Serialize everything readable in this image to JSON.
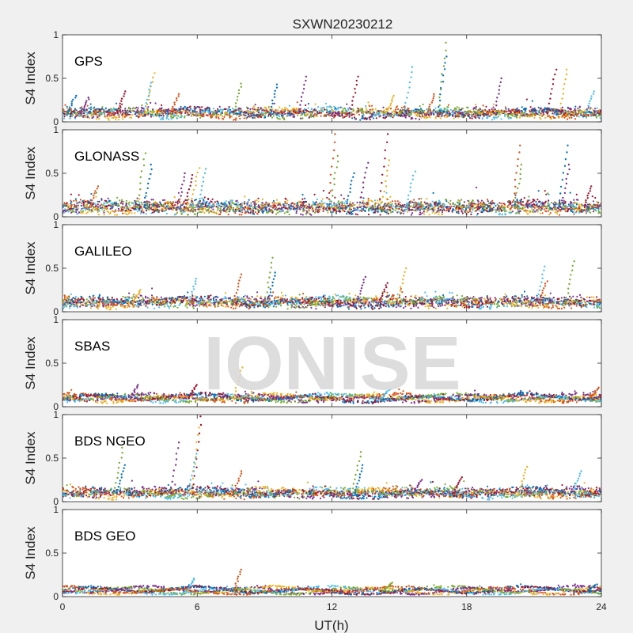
{
  "figure": {
    "title": "SXWN20230212",
    "xlabel": "UT(h)",
    "watermark": "IONISE",
    "background": "#f0f0f0",
    "axes_background": "#ffffff"
  },
  "chart_data": {
    "type": "scatter",
    "title": "SXWN20230212",
    "xlabel": "UT(h)",
    "xlim": [
      0,
      24
    ],
    "xticks": [
      0,
      6,
      12,
      18,
      24
    ],
    "grid": false,
    "series_colors": [
      "#0072BD",
      "#D95319",
      "#EDB120",
      "#7E2F8E",
      "#77AC30",
      "#4DBEEE",
      "#A2142F"
    ],
    "panels": [
      {
        "label": "GPS",
        "ylabel": "S4 Index",
        "ylim": [
          0,
          1
        ],
        "yticks": [
          0,
          0.5,
          1
        ],
        "baseline": 0.1,
        "noise": 0.03,
        "spikes": [
          {
            "x": 0.4,
            "y": 0.3
          },
          {
            "x": 1.0,
            "y": 0.28
          },
          {
            "x": 2.6,
            "y": 0.35
          },
          {
            "x": 3.9,
            "y": 0.56
          },
          {
            "x": 3.8,
            "y": 0.45
          },
          {
            "x": 5.0,
            "y": 0.32
          },
          {
            "x": 7.8,
            "y": 0.44
          },
          {
            "x": 9.4,
            "y": 0.43
          },
          {
            "x": 10.7,
            "y": 0.52
          },
          {
            "x": 13.0,
            "y": 0.52
          },
          {
            "x": 14.6,
            "y": 0.3
          },
          {
            "x": 15.4,
            "y": 0.63
          },
          {
            "x": 16.4,
            "y": 0.32
          },
          {
            "x": 16.9,
            "y": 0.91
          },
          {
            "x": 16.9,
            "y": 0.75
          },
          {
            "x": 19.4,
            "y": 0.5
          },
          {
            "x": 21.8,
            "y": 0.6
          },
          {
            "x": 22.3,
            "y": 0.6
          },
          {
            "x": 23.5,
            "y": 0.35
          }
        ]
      },
      {
        "label": "GLONASS",
        "ylabel": "S4 Index",
        "ylim": [
          0,
          1
        ],
        "yticks": [
          0,
          0.5,
          1
        ],
        "baseline": 0.11,
        "noise": 0.05,
        "spikes": [
          {
            "x": 1.4,
            "y": 0.35
          },
          {
            "x": 3.5,
            "y": 0.73
          },
          {
            "x": 3.8,
            "y": 0.6
          },
          {
            "x": 5.3,
            "y": 0.5
          },
          {
            "x": 5.6,
            "y": 0.48
          },
          {
            "x": 5.9,
            "y": 0.56
          },
          {
            "x": 6.2,
            "y": 0.55
          },
          {
            "x": 12.0,
            "y": 0.95
          },
          {
            "x": 12.1,
            "y": 0.7
          },
          {
            "x": 12.8,
            "y": 0.5
          },
          {
            "x": 13.4,
            "y": 0.62
          },
          {
            "x": 14.3,
            "y": 0.95
          },
          {
            "x": 14.4,
            "y": 0.65
          },
          {
            "x": 15.5,
            "y": 0.52
          },
          {
            "x": 20.2,
            "y": 0.82
          },
          {
            "x": 20.3,
            "y": 0.6
          },
          {
            "x": 22.3,
            "y": 0.82
          },
          {
            "x": 22.4,
            "y": 0.6
          },
          {
            "x": 23.4,
            "y": 0.35
          }
        ]
      },
      {
        "label": "GALILEO",
        "ylabel": "S4 Index",
        "ylim": [
          0,
          1
        ],
        "yticks": [
          0,
          0.5,
          1
        ],
        "baseline": 0.11,
        "noise": 0.035,
        "spikes": [
          {
            "x": 3.3,
            "y": 0.25
          },
          {
            "x": 5.8,
            "y": 0.38
          },
          {
            "x": 7.8,
            "y": 0.43
          },
          {
            "x": 9.2,
            "y": 0.62
          },
          {
            "x": 9.3,
            "y": 0.45
          },
          {
            "x": 13.3,
            "y": 0.4
          },
          {
            "x": 14.3,
            "y": 0.33
          },
          {
            "x": 15.1,
            "y": 0.5
          },
          {
            "x": 21.3,
            "y": 0.52
          },
          {
            "x": 21.4,
            "y": 0.35
          },
          {
            "x": 22.6,
            "y": 0.58
          }
        ]
      },
      {
        "label": "SBAS",
        "ylabel": "S4 Index",
        "ylim": [
          0,
          1
        ],
        "yticks": [
          0,
          0.5,
          1
        ],
        "baseline": 0.1,
        "noise": 0.015,
        "spikes": [
          {
            "x": 3.2,
            "y": 0.25
          },
          {
            "x": 5.8,
            "y": 0.25
          },
          {
            "x": 7.8,
            "y": 0.45
          },
          {
            "x": 14.4,
            "y": 0.2
          },
          {
            "x": 23.7,
            "y": 0.22
          }
        ]
      },
      {
        "label": "BDS NGEO",
        "ylabel": "S4 Index",
        "ylim": [
          0,
          1
        ],
        "yticks": [
          0,
          0.5,
          1
        ],
        "baseline": 0.1,
        "noise": 0.03,
        "spikes": [
          {
            "x": 2.5,
            "y": 0.62
          },
          {
            "x": 2.6,
            "y": 0.42
          },
          {
            "x": 5.0,
            "y": 0.68
          },
          {
            "x": 6.0,
            "y": 0.98
          },
          {
            "x": 5.9,
            "y": 0.85
          },
          {
            "x": 5.8,
            "y": 0.55
          },
          {
            "x": 7.8,
            "y": 0.35
          },
          {
            "x": 13.1,
            "y": 0.57
          },
          {
            "x": 13.2,
            "y": 0.42
          },
          {
            "x": 15.8,
            "y": 0.25
          },
          {
            "x": 17.6,
            "y": 0.28
          },
          {
            "x": 20.5,
            "y": 0.4
          },
          {
            "x": 22.9,
            "y": 0.35
          }
        ]
      },
      {
        "label": "BDS GEO",
        "ylabel": "S4 Index",
        "ylim": [
          0,
          1
        ],
        "yticks": [
          0,
          0.5,
          1
        ],
        "baseline": 0.07,
        "noise": 0.01,
        "spikes": [
          {
            "x": 5.7,
            "y": 0.21
          },
          {
            "x": 7.8,
            "y": 0.31
          },
          {
            "x": 14.5,
            "y": 0.16
          },
          {
            "x": 23.6,
            "y": 0.14
          }
        ]
      }
    ]
  }
}
